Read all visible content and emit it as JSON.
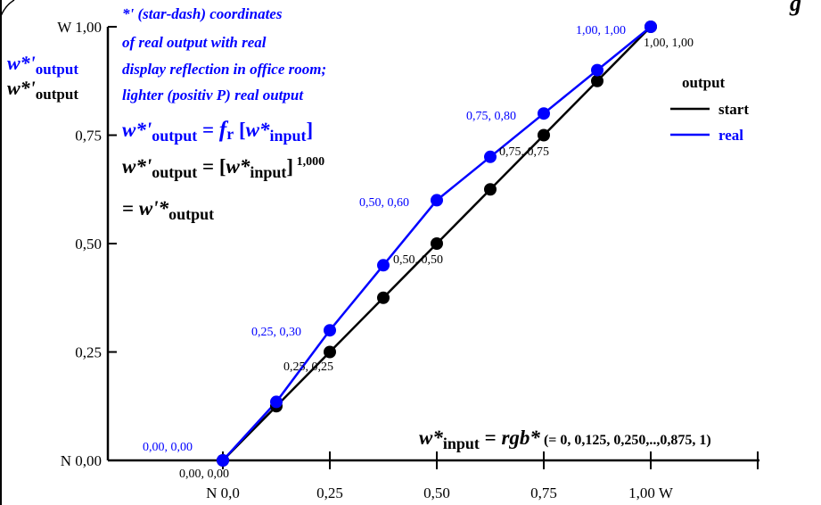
{
  "chart_data": {
    "type": "line",
    "xlim": [
      0,
      1
    ],
    "ylim": [
      0,
      1
    ],
    "grid": false,
    "legend_placement": "top-right",
    "title_fragment": "g",
    "x_ticks": [
      "N  0,0",
      "0,25",
      "0,50",
      "0,75",
      "1,00  W"
    ],
    "y_ticks": [
      "N 0,00",
      "0,25",
      "0,50",
      "0,75",
      "W 1,00"
    ],
    "legend": {
      "title": "output",
      "entries": [
        {
          "name": "start",
          "color": "#000000"
        },
        {
          "name": "real",
          "color": "#0000ff"
        }
      ]
    },
    "series": [
      {
        "name": "start",
        "color": "#000000",
        "x": [
          0,
          0.125,
          0.25,
          0.375,
          0.5,
          0.625,
          0.75,
          0.875,
          1.0
        ],
        "y": [
          0,
          0.125,
          0.25,
          0.375,
          0.5,
          0.625,
          0.75,
          0.875,
          1.0
        ]
      },
      {
        "name": "real",
        "color": "#0000ff",
        "x": [
          0,
          0.125,
          0.25,
          0.375,
          0.5,
          0.625,
          0.75,
          0.875,
          1.0
        ],
        "y": [
          0,
          0.135,
          0.3,
          0.45,
          0.6,
          0.7,
          0.8,
          0.9,
          1.0
        ]
      }
    ],
    "point_labels": {
      "black": [
        "0,00, 0,00",
        "0,25, 0,25",
        "0,50, 0,50",
        "0,75, 0,75",
        "1,00, 1,00"
      ],
      "blue": [
        "0,00, 0,00",
        "0,25, 0,30",
        "0,50, 0,60",
        "0,75, 0,80",
        "1,00, 1,00"
      ]
    },
    "annotations": {
      "blue_lines": [
        "*' (star-dash) coordinates",
        "of real output with real",
        "display reflection in office room;",
        "lighter (positiv P) real output"
      ],
      "ylabel_blue_main": "w*'",
      "ylabel_blue_sub": "output",
      "ylabel_black_main": "w*'",
      "ylabel_black_sub": "output",
      "formula1_main": "w*'",
      "formula1_sub1": "output",
      "formula1_mid": " = ",
      "formula1_f": "f",
      "formula1_fsub": "r",
      "formula1_open": " [",
      "formula1_w": "w*",
      "formula1_sub2": "input",
      "formula1_close": "]",
      "formula2_main": "w*'",
      "formula2_sub1": "output",
      "formula2_mid": " = [",
      "formula2_w": "w*",
      "formula2_sub2": "input",
      "formula2_close": "]",
      "formula2_exp": " 1,000",
      "formula3_eq": "= ",
      "formula3_w": "w'*",
      "formula3_sub": "output",
      "xlabel_main": "w*",
      "xlabel_sub": "input",
      "xlabel_eq": " = ",
      "xlabel_rgb": "rgb*",
      "xlabel_rest": " (= 0, 0,125, 0,250,..,0,875, 1)"
    }
  }
}
